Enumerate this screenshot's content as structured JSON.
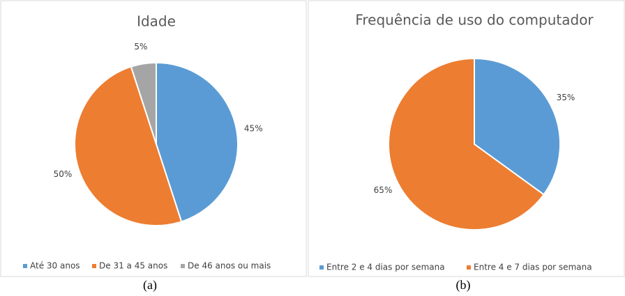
{
  "chart_data": [
    {
      "type": "pie",
      "title": "Idade",
      "caption": "(a)",
      "categories": [
        "Até 30 anos",
        "De 31 a 45 anos",
        "De 46 anos ou mais"
      ],
      "values": [
        45,
        50,
        5
      ],
      "value_labels": [
        "45%",
        "50%",
        "5%"
      ],
      "colors": [
        "#5b9bd5",
        "#ed7d31",
        "#a5a5a5"
      ],
      "legend": "bottom"
    },
    {
      "type": "pie",
      "title": "Frequência de uso do computador",
      "caption": "(b)",
      "categories": [
        "Entre 2 e 4 dias por semana",
        "Entre 4 e 7 dias por semana"
      ],
      "values": [
        35,
        65
      ],
      "value_labels": [
        "35%",
        "65%"
      ],
      "colors": [
        "#5b9bd5",
        "#ed7d31"
      ],
      "legend": "bottom"
    }
  ]
}
